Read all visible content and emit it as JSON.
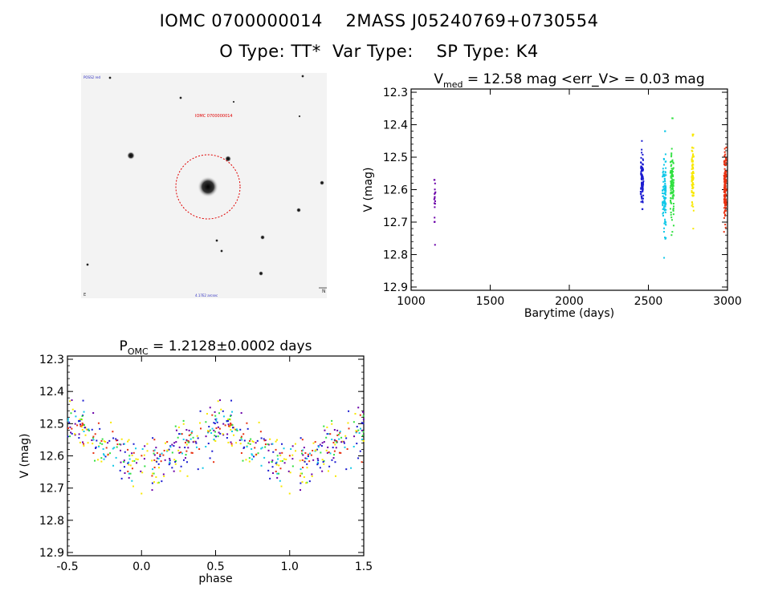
{
  "header": {
    "line1": "IOMC 0700000014    2MASS J05240769+0730554",
    "line2": "O Type: TT*  Var Type:    SP Type: K4"
  },
  "sky_image": {
    "target_label": "IOMC 0700000014",
    "corner_labels": [
      "POSS2 red",
      "N",
      "E",
      "4.17E2 arcsec"
    ]
  },
  "chart_data": [
    {
      "type": "scatter",
      "title": "V_med = 12.58 mag <err_V> = 0.03 mag",
      "title_parts": {
        "v": "V",
        "sub": "med",
        "rest": " = 12.58 mag <err_V> = 0.03 mag"
      },
      "xlabel": "Barytime (days)",
      "ylabel": "V (mag)",
      "xlim": [
        1000,
        3000
      ],
      "ylim": [
        12.29,
        12.91
      ],
      "y_inverted": true,
      "xticks": [
        1000,
        1500,
        2000,
        2500,
        3000
      ],
      "yticks": [
        12.3,
        12.4,
        12.5,
        12.6,
        12.7,
        12.8,
        12.9
      ],
      "groups": [
        {
          "t": 1150,
          "spread": 8,
          "n": 18,
          "color": "#6a00a8",
          "mean": 12.64,
          "sd": 0.045,
          "min": 12.57,
          "max": 12.77
        },
        {
          "t": 2460,
          "spread": 18,
          "n": 80,
          "color": "#1a1ad0",
          "mean": 12.57,
          "sd": 0.04,
          "min": 12.45,
          "max": 12.66
        },
        {
          "t": 2600,
          "spread": 22,
          "n": 110,
          "color": "#10c8e8",
          "mean": 12.62,
          "sd": 0.055,
          "min": 12.42,
          "max": 12.81
        },
        {
          "t": 2650,
          "spread": 22,
          "n": 110,
          "color": "#30e040",
          "mean": 12.59,
          "sd": 0.05,
          "min": 12.38,
          "max": 12.74
        },
        {
          "t": 2780,
          "spread": 12,
          "n": 80,
          "color": "#f8e800",
          "mean": 12.56,
          "sd": 0.05,
          "min": 12.43,
          "max": 12.72
        },
        {
          "t": 2985,
          "spread": 14,
          "n": 140,
          "color": "#e83010",
          "mean": 12.59,
          "sd": 0.05,
          "min": 12.47,
          "max": 12.73
        }
      ]
    },
    {
      "type": "scatter",
      "title": "P_OMC = 1.2128±0.0002 days",
      "title_parts": {
        "p": "P",
        "sub": "OMC",
        "rest": " = 1.2128±0.0002 days"
      },
      "xlabel": "phase",
      "ylabel": "V (mag)",
      "xlim": [
        -0.5,
        1.5
      ],
      "ylim": [
        12.29,
        12.91
      ],
      "y_inverted": true,
      "xticks": [
        -0.5,
        0.0,
        0.5,
        1.0,
        1.5
      ],
      "xtick_labels": [
        "-0.5",
        "0.0",
        "0.5",
        "1.0",
        "1.5"
      ],
      "yticks": [
        12.3,
        12.4,
        12.5,
        12.6,
        12.7,
        12.8,
        12.9
      ],
      "period_days": 1.2128,
      "curve": {
        "knots": [
          0.0,
          0.1,
          0.2,
          0.3,
          0.4,
          0.5,
          0.6,
          0.7,
          0.8,
          0.9,
          1.0
        ],
        "mag": [
          12.64,
          12.63,
          12.59,
          12.56,
          12.54,
          12.51,
          12.51,
          12.55,
          12.57,
          12.62,
          12.64
        ]
      },
      "colors": [
        "#1a1ad0",
        "#10c8e8",
        "#30e040",
        "#f8e800",
        "#e83010",
        "#6a00a8"
      ]
    }
  ]
}
